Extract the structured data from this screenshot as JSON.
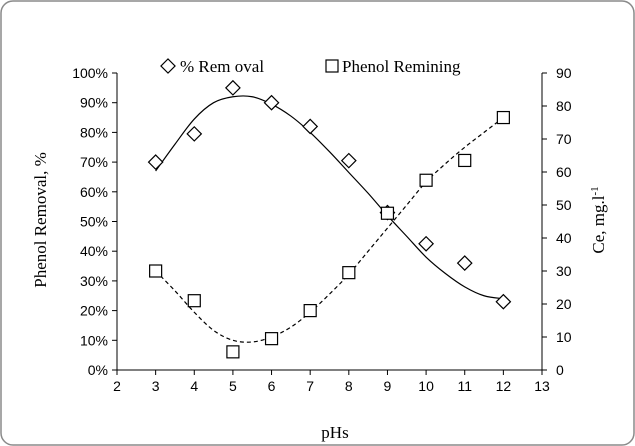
{
  "chart_data": {
    "type": "scatter",
    "x_axis": {
      "label": "pHs",
      "range": [
        2,
        13
      ],
      "ticks": [
        "2",
        "3",
        "4",
        "5",
        "6",
        "7",
        "8",
        "9",
        "10",
        "11",
        "12",
        "13"
      ]
    },
    "y_left_axis": {
      "label": "Phenol Removal,  %",
      "range": [
        0,
        100
      ],
      "ticks": [
        "0%",
        "10%",
        "20%",
        "30%",
        "40%",
        "50%",
        "60%",
        "70%",
        "80%",
        "90%",
        "100%"
      ]
    },
    "y_right_axis": {
      "label": "Ce,  mg.l",
      "label_superscript": "-1",
      "range": [
        0,
        90
      ],
      "ticks": [
        "0",
        "10",
        "20",
        "30",
        "40",
        "50",
        "60",
        "70",
        "80",
        "90"
      ]
    },
    "legend_position": "top",
    "grid": false,
    "series": [
      {
        "name": "% Rem oval",
        "axis": "left",
        "marker": "diamond",
        "x": [
          3,
          4,
          5,
          6,
          7,
          8,
          9,
          10,
          11,
          12
        ],
        "y": [
          70,
          79.5,
          95,
          90,
          82,
          70.5,
          53,
          42.5,
          36,
          23
        ],
        "trendline": {
          "style": "solid",
          "x": [
            3,
            3.5,
            4,
            4.5,
            5,
            5.5,
            6,
            6.5,
            7,
            7.5,
            8,
            8.5,
            9,
            9.5,
            10,
            10.5,
            11,
            11.5,
            12
          ],
          "y": [
            67,
            76,
            84.5,
            90,
            92,
            92,
            89.5,
            85.5,
            80,
            73.5,
            66.5,
            59.5,
            52,
            45,
            38,
            32.5,
            28,
            25,
            24
          ]
        }
      },
      {
        "name": "Phenol Remining",
        "axis": "right",
        "marker": "square",
        "x": [
          3,
          4,
          5,
          6,
          7,
          8,
          9,
          10,
          11,
          12
        ],
        "y": [
          30,
          21,
          5.5,
          9.5,
          18,
          29.5,
          47.5,
          57.5,
          63.5,
          76.5
        ],
        "trendline": {
          "style": "dashed",
          "x": [
            3,
            3.5,
            4,
            4.5,
            5,
            5.5,
            6,
            6.5,
            7,
            7.5,
            8,
            8.5,
            9,
            9.5,
            10,
            10.5,
            11,
            11.5,
            12
          ],
          "y": [
            30,
            24,
            17.5,
            12,
            9,
            8.5,
            10,
            13,
            17.5,
            23,
            29,
            36,
            43,
            50,
            57,
            62.5,
            67.5,
            72,
            76.5
          ]
        }
      }
    ]
  }
}
